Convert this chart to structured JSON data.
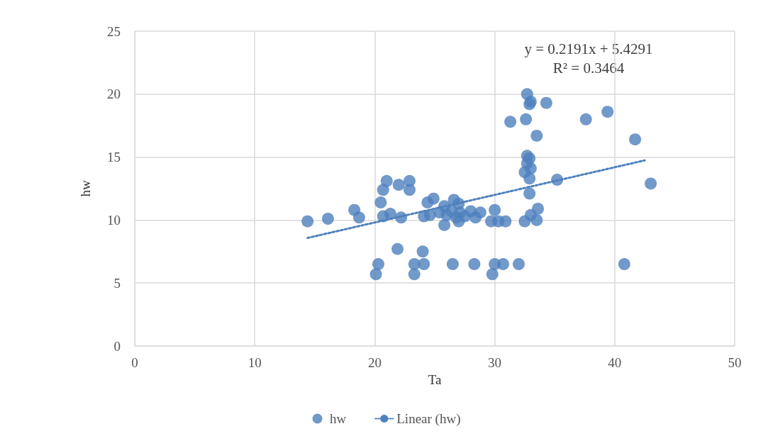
{
  "chart_data": {
    "type": "scatter",
    "xlabel": "Ta",
    "ylabel": "hw",
    "annotations": [
      "y = 0.2191x + 5.4291",
      "R² = 0.3464"
    ],
    "xlim": [
      0,
      50
    ],
    "xticks": [
      0,
      10,
      20,
      30,
      40,
      50
    ],
    "ylim": [
      0,
      25
    ],
    "yticks": [
      0,
      5,
      10,
      15,
      20,
      25
    ],
    "grid": true,
    "legend": "bottom",
    "marker": "circle",
    "series": [
      {
        "name": "hw",
        "color": "#4e80bd",
        "x": [
          14.4,
          16.1,
          18.3,
          18.7,
          21.0,
          20.7,
          20.5,
          20.7,
          21.3,
          22.2,
          22.0,
          22.9,
          22.9,
          24.1,
          24.6,
          24.9,
          24.4,
          25.8,
          25.8,
          26.6,
          27.0,
          26.0,
          26.8,
          27.0,
          28.0,
          28.4,
          28.8,
          30.0,
          29.7,
          30.3,
          26.4,
          27.1,
          27.5,
          25.4,
          21.9,
          24.0,
          20.3,
          20.1,
          23.3,
          24.1,
          23.3,
          26.5,
          28.3,
          30.0,
          30.7,
          32.0,
          29.8,
          40.8,
          32.7,
          33.0,
          32.9,
          34.3,
          31.3,
          32.6,
          33.5,
          37.6,
          39.4,
          41.7,
          32.7,
          32.9,
          32.7,
          33.0,
          32.5,
          32.9,
          35.2,
          43.0,
          32.9,
          33.6,
          33.0,
          32.5,
          33.5,
          30.9
        ],
        "values": [
          9.9,
          10.1,
          10.8,
          10.2,
          13.1,
          12.4,
          11.4,
          10.3,
          10.5,
          10.2,
          12.8,
          13.1,
          12.4,
          10.3,
          10.4,
          11.7,
          11.4,
          11.1,
          9.6,
          11.6,
          11.3,
          10.4,
          10.2,
          9.9,
          10.7,
          10.2,
          10.6,
          10.8,
          9.9,
          9.9,
          10.7,
          10.6,
          10.3,
          10.6,
          7.7,
          7.5,
          6.5,
          5.7,
          6.5,
          6.5,
          5.7,
          6.5,
          6.5,
          6.5,
          6.5,
          6.5,
          5.7,
          6.5,
          20.0,
          19.4,
          19.2,
          19.3,
          17.8,
          18.0,
          16.7,
          18.0,
          18.6,
          16.4,
          15.1,
          14.9,
          14.5,
          14.1,
          13.8,
          13.3,
          13.2,
          12.9,
          12.1,
          10.9,
          10.4,
          9.9,
          10.0,
          9.9
        ]
      },
      {
        "name": "Linear (hw)",
        "type": "line",
        "color": "#4e80bd",
        "marker": "none",
        "line_style": "dotted",
        "x": [
          14.4,
          42.5
        ],
        "values": [
          8.58,
          14.74
        ]
      }
    ]
  }
}
